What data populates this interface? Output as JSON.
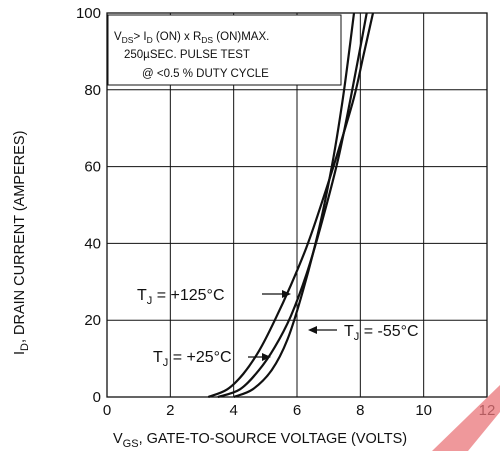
{
  "chart_data": {
    "type": "line",
    "title": "",
    "xlabel": {
      "pre": "V",
      "sub": "GS",
      "post": ", GATE-TO-SOURCE VOLTAGE (VOLTS)"
    },
    "ylabel": {
      "pre": "I",
      "sub": "D",
      "post": ", DRAIN CURRENT (AMPERES)"
    },
    "xlim": [
      0,
      12
    ],
    "ylim": [
      0,
      100
    ],
    "xticks": [
      "0",
      "2",
      "4",
      "6",
      "8",
      "10",
      "12"
    ],
    "yticks": [
      "0",
      "20",
      "40",
      "60",
      "80",
      "100"
    ],
    "grid": true,
    "series": [
      {
        "name": "T_J = +125°C",
        "x": [
          3.2,
          3.8,
          4.3,
          4.8,
          5.3,
          5.8,
          6.3,
          6.8,
          7.3,
          7.8,
          8.1,
          8.4
        ],
        "y": [
          0,
          2,
          6,
          12,
          20,
          29,
          39,
          51,
          64,
          78,
          89,
          100
        ]
      },
      {
        "name": "T_J = +25°C",
        "x": [
          3.5,
          4.2,
          4.8,
          5.3,
          5.8,
          6.3,
          6.8,
          7.3,
          7.7,
          8.0,
          8.2
        ],
        "y": [
          0,
          2,
          7,
          13,
          21,
          32,
          46,
          62,
          78,
          91,
          100
        ]
      },
      {
        "name": "T_J = -55°C",
        "x": [
          4.0,
          4.6,
          5.2,
          5.7,
          6.2,
          6.7,
          7.1,
          7.4,
          7.6,
          7.8
        ],
        "y": [
          0,
          2,
          7,
          15,
          28,
          44,
          60,
          75,
          87,
          100
        ]
      }
    ],
    "annotations": [
      {
        "text": "T_J = +125°C",
        "pre": "T",
        "sub": "J",
        "post": " = +125°C"
      },
      {
        "text": "T_J = +25°C",
        "pre": "T",
        "sub": "J",
        "post": " = +25°C"
      },
      {
        "text": "T_J = -55°C",
        "pre": "T",
        "sub": "J",
        "post": " = -55°C"
      }
    ],
    "note": {
      "line1": {
        "p1": "V",
        "s1": "DS",
        "p2": "> I",
        "s2": "D",
        "p3": " (ON) x  R",
        "s3": "DS",
        "p4": " (ON)MAX."
      },
      "line2": "250µSEC.  PULSE  TEST",
      "line3": "@  <0.5 %  DUTY  CYCLE"
    }
  }
}
